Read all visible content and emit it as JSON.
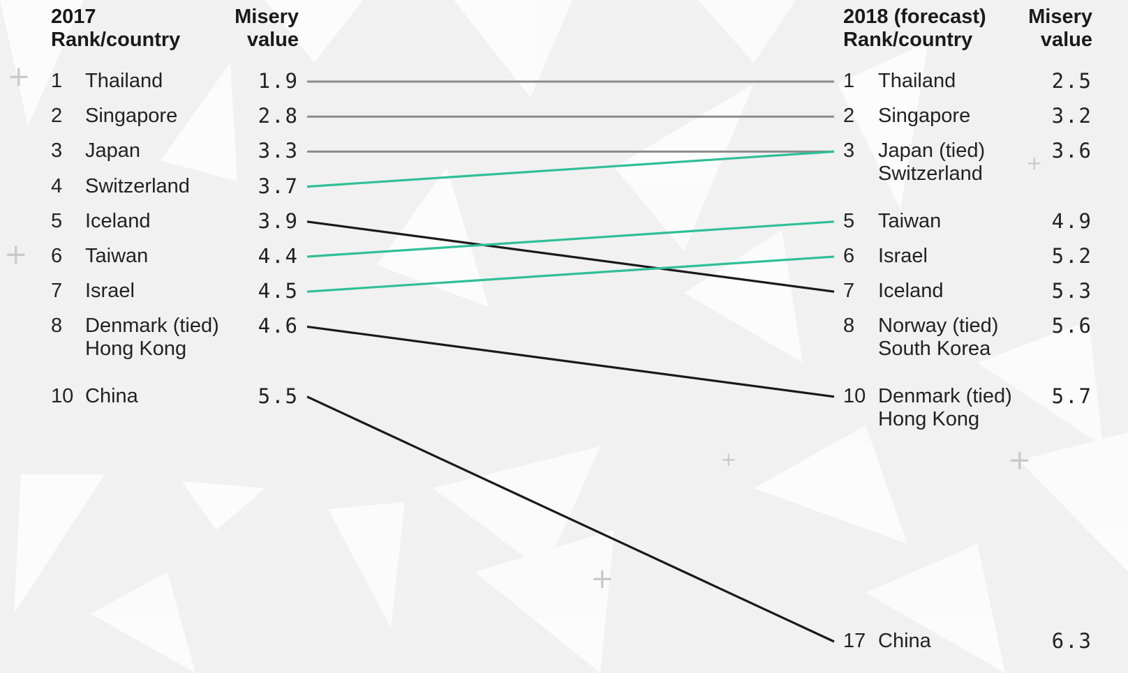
{
  "colors": {
    "unchanged": "#8a8a8a",
    "improved": "#2fbf97",
    "worsened": "#1a1a1a"
  },
  "headers": {
    "left_rank": "2017\nRank/country",
    "left_value": "Misery\nvalue",
    "right_rank": "2018 (forecast)\nRank/country",
    "right_value": "Misery\nvalue"
  },
  "chart_data": {
    "type": "slope",
    "left_label": "2017",
    "right_label": "2018 (forecast)",
    "left": [
      {
        "rank": "1",
        "country": "Thailand",
        "value": "1.9"
      },
      {
        "rank": "2",
        "country": "Singapore",
        "value": "2.8"
      },
      {
        "rank": "3",
        "country": "Japan",
        "value": "3.3"
      },
      {
        "rank": "4",
        "country": "Switzerland",
        "value": "3.7"
      },
      {
        "rank": "5",
        "country": "Iceland",
        "value": "3.9"
      },
      {
        "rank": "6",
        "country": "Taiwan",
        "value": "4.4"
      },
      {
        "rank": "7",
        "country": "Israel",
        "value": "4.5"
      },
      {
        "rank": "8",
        "country": "Denmark (tied)\nHong Kong",
        "value": "4.6"
      },
      {
        "rank": "10",
        "country": "China",
        "value": "5.5"
      }
    ],
    "right": [
      {
        "rank": "1",
        "country": "Thailand",
        "value": "2.5"
      },
      {
        "rank": "2",
        "country": "Singapore",
        "value": "3.2"
      },
      {
        "rank": "3",
        "country": "Japan (tied)\nSwitzerland",
        "value": "3.6"
      },
      {
        "rank": "5",
        "country": "Taiwan",
        "value": "4.9"
      },
      {
        "rank": "6",
        "country": "Israel",
        "value": "5.2"
      },
      {
        "rank": "7",
        "country": "Iceland",
        "value": "5.3"
      },
      {
        "rank": "8",
        "country": "Norway (tied)\nSouth Korea",
        "value": "5.6"
      },
      {
        "rank": "10",
        "country": "Denmark (tied)\nHong Kong",
        "value": "5.7"
      },
      {
        "rank": "17",
        "country": "China",
        "value": "6.3"
      }
    ],
    "connections": [
      {
        "country": "Thailand",
        "from_rank": 1,
        "to_rank": 1,
        "change": "unchanged"
      },
      {
        "country": "Singapore",
        "from_rank": 2,
        "to_rank": 2,
        "change": "unchanged"
      },
      {
        "country": "Japan",
        "from_rank": 3,
        "to_rank": 3,
        "change": "unchanged"
      },
      {
        "country": "Switzerland",
        "from_rank": 4,
        "to_rank": 3,
        "change": "improved"
      },
      {
        "country": "Iceland",
        "from_rank": 5,
        "to_rank": 7,
        "change": "worsened"
      },
      {
        "country": "Taiwan",
        "from_rank": 6,
        "to_rank": 5,
        "change": "improved"
      },
      {
        "country": "Israel",
        "from_rank": 7,
        "to_rank": 6,
        "change": "improved"
      },
      {
        "country": "Denmark / Hong Kong",
        "from_rank": 8,
        "to_rank": 10,
        "change": "worsened"
      },
      {
        "country": "China",
        "from_rank": 10,
        "to_rank": 17,
        "change": "worsened"
      }
    ]
  }
}
